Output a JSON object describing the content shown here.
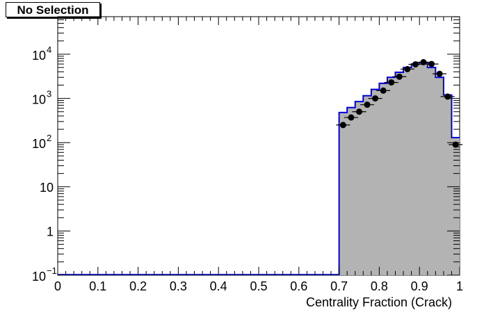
{
  "legend": {
    "label": "No Selection"
  },
  "chart_data": {
    "type": "histogram",
    "xlabel": "Centrality Fraction (Crack)",
    "ylabel": "",
    "title": "",
    "xlim": [
      0,
      1
    ],
    "ylim": [
      0.1,
      50000
    ],
    "yscale": "log",
    "grid": false,
    "x_ticks": [
      "0",
      "0.1",
      "0.2",
      "0.3",
      "0.4",
      "0.5",
      "0.6",
      "0.7",
      "0.8",
      "0.9",
      "1"
    ],
    "y_ticks": [
      {
        "value": 0.1,
        "base": "10",
        "exp": "−1"
      },
      {
        "value": 1,
        "base": "1",
        "exp": ""
      },
      {
        "value": 10,
        "base": "10",
        "exp": ""
      },
      {
        "value": 100,
        "base": "10",
        "exp": "2"
      },
      {
        "value": 1000,
        "base": "10",
        "exp": "3"
      },
      {
        "value": 10000,
        "base": "10",
        "exp": "4"
      }
    ],
    "bin_edges": [
      0.7,
      0.72,
      0.74,
      0.76,
      0.78,
      0.8,
      0.82,
      0.84,
      0.86,
      0.88,
      0.9,
      0.92,
      0.94,
      0.96,
      0.98,
      1.0
    ],
    "series": [
      {
        "style": "filled-histogram",
        "fill": "#b3b3b3",
        "line": "#0000dd",
        "values": [
          480,
          620,
          850,
          1150,
          1600,
          2200,
          3000,
          3900,
          5000,
          6000,
          6500,
          5000,
          3000,
          1200,
          130
        ]
      },
      {
        "style": "markers",
        "color": "#000000",
        "x": [
          0.71,
          0.73,
          0.75,
          0.77,
          0.79,
          0.81,
          0.83,
          0.85,
          0.87,
          0.89,
          0.91,
          0.93,
          0.95,
          0.97,
          0.99
        ],
        "values": [
          250,
          370,
          500,
          720,
          1000,
          1500,
          2300,
          3100,
          4600,
          5900,
          6600,
          6000,
          3600,
          1100,
          90
        ]
      }
    ]
  }
}
